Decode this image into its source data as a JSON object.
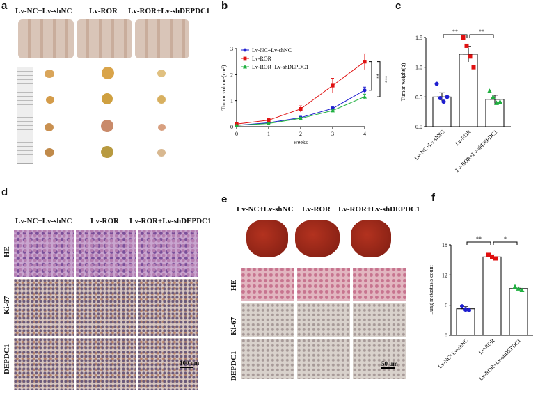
{
  "panels": {
    "a": "a",
    "b": "b",
    "c": "c",
    "d": "d",
    "e": "e",
    "f": "f"
  },
  "groups_a": [
    "Lv-NC+Lv-shNC",
    "Lv-ROR",
    "Lv-ROR+Lv-shDEPDC1"
  ],
  "groups_d": [
    "Lv-NC+Lv-shNC",
    "Lv-ROR",
    "Lv-ROR+Lv-shDEPDC1"
  ],
  "groups_e": [
    "Lv-NC+Lv-shNC",
    "Lv-ROR",
    "Lv-ROR+Lv-shDEPDC1"
  ],
  "rows_d": [
    "HE",
    "Ki-67",
    "DEPDC1"
  ],
  "rows_e": [
    "HE",
    "Ki-67",
    "DEPDC1"
  ],
  "scalebar_d": "100 um",
  "scalebar_e": "50 um",
  "colors": {
    "nc": "#1f1fd0",
    "ror": "#e01010",
    "sh": "#20b040",
    "bar": "#000000"
  },
  "chart_data": [
    {
      "type": "line",
      "x": [
        0,
        1,
        2,
        3,
        4
      ],
      "xlabel": "weeks",
      "ylabel": "Tumor volume(cm³)",
      "ylim": [
        0,
        3
      ],
      "yticks": [
        0,
        1,
        2,
        3
      ],
      "series": [
        {
          "name": "Lv-NC+Lv-shNC",
          "values": [
            0.05,
            0.15,
            0.35,
            0.7,
            1.4
          ],
          "err": [
            0.02,
            0.03,
            0.05,
            0.06,
            0.12
          ]
        },
        {
          "name": "Lv-ROR",
          "values": [
            0.1,
            0.25,
            0.68,
            1.58,
            2.5
          ],
          "err": [
            0.03,
            0.05,
            0.12,
            0.28,
            0.3
          ]
        },
        {
          "name": "Lv-ROR+Lv-shDEPDC1",
          "values": [
            0.05,
            0.12,
            0.32,
            0.62,
            1.15
          ],
          "err": [
            0.02,
            0.03,
            0.04,
            0.05,
            0.1
          ]
        }
      ],
      "significance": [
        "**",
        "***"
      ],
      "legend": "top-left"
    },
    {
      "type": "bar",
      "categories": [
        "Lv-NC+Lv-shNC",
        "Lv-ROR",
        "Lv-ROR+Lv-shDEPDC1"
      ],
      "values": [
        0.5,
        1.22,
        0.46
      ],
      "err": [
        0.07,
        0.13,
        0.07
      ],
      "points": [
        [
          0.72,
          0.48,
          0.42,
          0.5
        ],
        [
          1.5,
          1.36,
          1.18,
          1.0
        ],
        [
          0.6,
          0.5,
          0.4,
          0.42
        ]
      ],
      "ylabel": "Tumor weight(g)",
      "ylim": [
        0,
        1.5
      ],
      "yticks": [
        0,
        0.5,
        1.0,
        1.5
      ],
      "ytick_labels": [
        "0.0",
        "0.5",
        "1.0",
        "1.5"
      ],
      "significance": [
        "**",
        "**"
      ]
    },
    {
      "type": "bar",
      "categories": [
        "Lv-NC+Lv-shNC",
        "Lv-ROR",
        "Lv-ROR+Lv-shDEPDC1"
      ],
      "values": [
        5.3,
        15.6,
        9.3
      ],
      "err": [
        0.4,
        0.4,
        0.3
      ],
      "points": [
        [
          5.8,
          5.1,
          5.0
        ],
        [
          16.0,
          15.6,
          15.3
        ],
        [
          9.7,
          9.3,
          9.0
        ]
      ],
      "ylabel": "Lung metastasis count",
      "ylim": [
        0,
        18
      ],
      "yticks": [
        0,
        6,
        12,
        18
      ],
      "ytick_labels": [
        "0",
        "6",
        "12",
        "18"
      ],
      "significance": [
        "**",
        "*"
      ]
    }
  ]
}
